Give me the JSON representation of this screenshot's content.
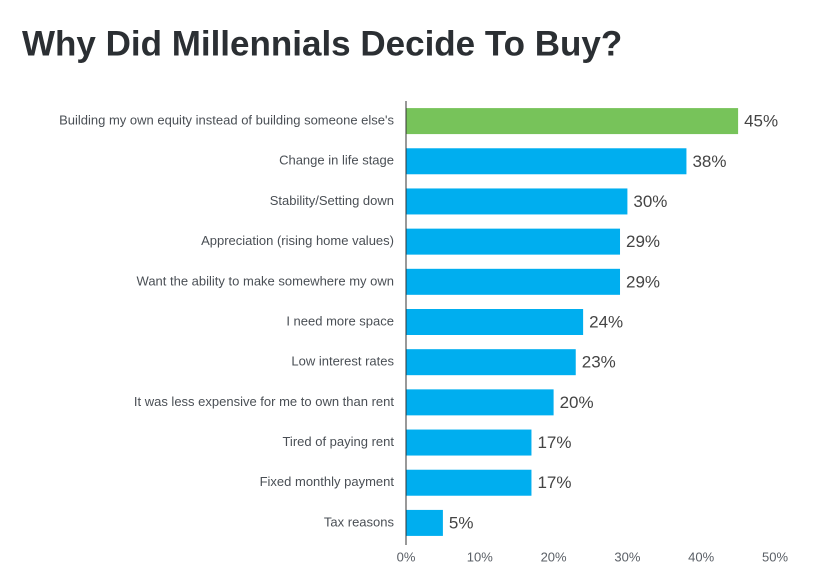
{
  "chart_data": {
    "type": "bar",
    "orientation": "horizontal",
    "title": "Why Did Millennials Decide To Buy?",
    "categories": [
      "Building my own equity instead of building someone else's",
      "Change in life stage",
      "Stability/Setting down",
      "Appreciation (rising home values)",
      "Want the ability to make somewhere my own",
      "I need more space",
      "Low interest rates",
      "It was less expensive for me to own than rent",
      "Tired of paying rent",
      "Fixed monthly payment",
      "Tax reasons"
    ],
    "values": [
      45,
      38,
      30,
      29,
      29,
      24,
      23,
      20,
      17,
      17,
      5
    ],
    "value_labels": [
      "45%",
      "38%",
      "30%",
      "29%",
      "29%",
      "24%",
      "23%",
      "20%",
      "17%",
      "17%",
      "5%"
    ],
    "colors": [
      "#77c35a",
      "#00aeef",
      "#00aeef",
      "#00aeef",
      "#00aeef",
      "#00aeef",
      "#00aeef",
      "#00aeef",
      "#00aeef",
      "#00aeef",
      "#00aeef"
    ],
    "xlim": [
      0,
      50
    ],
    "xticks": [
      {
        "value": 0,
        "label": "0%"
      },
      {
        "value": 10,
        "label": "10%"
      },
      {
        "value": 20,
        "label": "20%"
      },
      {
        "value": 30,
        "label": "30%"
      },
      {
        "value": 40,
        "label": "40%"
      },
      {
        "value": 50,
        "label": "50%"
      }
    ],
    "grid": false
  }
}
